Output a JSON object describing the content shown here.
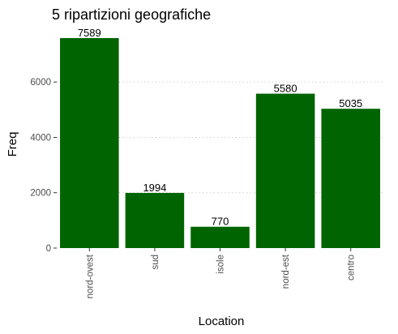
{
  "colors": {
    "bar": "#006400",
    "grid": "#d0d0d0",
    "tick": "#333333"
  },
  "chart_data": {
    "type": "bar",
    "title": "5 ripartizioni geografiche",
    "xlabel": "Location",
    "ylabel": "Freq",
    "categories": [
      "nord-ovest",
      "sud",
      "isole",
      "nord-est",
      "centro"
    ],
    "values": [
      7589,
      1994,
      770,
      5580,
      5035
    ],
    "data_labels": [
      "7589",
      "1994",
      "770",
      "5580",
      "5035"
    ],
    "y_ticks": [
      0,
      2000,
      4000,
      6000
    ],
    "y_tick_labels": [
      "0",
      "2000",
      "4000",
      "6000"
    ],
    "ylim": [
      0,
      7589
    ],
    "grid": "horizontal dotted",
    "x_tick_orientation": "vertical"
  }
}
